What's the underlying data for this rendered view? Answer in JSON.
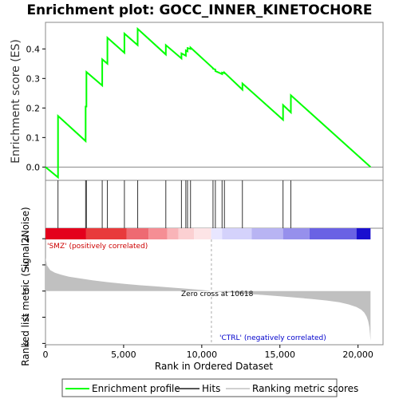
{
  "chart_data": {
    "type": "line",
    "title": "Enrichment plot: GOCC_INNER_KINETOCHORE",
    "es_panel": {
      "ylabel": "Enrichment score (ES)",
      "ylim": [
        -0.045,
        0.49
      ],
      "yticks": [
        0.0,
        0.1,
        0.2,
        0.3,
        0.4
      ],
      "ytick_labels": [
        "0.0",
        "0.1",
        "0.2",
        "0.3",
        "0.4"
      ],
      "series": [
        {
          "name": "Enrichment profile",
          "color": "#00ff00",
          "x": [
            0,
            800,
            800,
            2570,
            2570,
            2620,
            2620,
            3630,
            3630,
            3960,
            3960,
            5050,
            5050,
            5900,
            5900,
            7700,
            7700,
            8700,
            8700,
            8980,
            8980,
            9090,
            9090,
            9280,
            9280,
            10720,
            10720,
            10870,
            10870,
            11300,
            11300,
            11450,
            11450,
            12600,
            12600,
            15200,
            15200,
            15700,
            15700,
            20800
          ],
          "y": [
            0.0,
            -0.035,
            0.173,
            0.088,
            0.205,
            0.205,
            0.322,
            0.276,
            0.365,
            0.35,
            0.438,
            0.387,
            0.452,
            0.413,
            0.468,
            0.381,
            0.413,
            0.368,
            0.385,
            0.377,
            0.395,
            0.392,
            0.403,
            0.4,
            0.405,
            0.335,
            0.333,
            0.33,
            0.325,
            0.315,
            0.32,
            0.318,
            0.32,
            0.262,
            0.283,
            0.16,
            0.21,
            0.185,
            0.243,
            0.0
          ]
        }
      ]
    },
    "hits_panel": {
      "legend_label": "Hits",
      "hit_positions": [
        800,
        2570,
        2620,
        3630,
        3960,
        5050,
        5900,
        7700,
        8700,
        8980,
        9090,
        9280,
        10720,
        10870,
        11300,
        11450,
        12600,
        15200,
        15700
      ]
    },
    "heatmap_bar": {
      "colors": [
        "#e4001c",
        "#e83a3c",
        "#ee6a72",
        "#f58e94",
        "#f9b4b8",
        "#fbd0d2",
        "#fde4e6",
        "#e8e6ff",
        "#d4d2fb",
        "#b8b4f3",
        "#9690ec",
        "#6a62e4",
        "#1a0fcf"
      ],
      "breaks": [
        0,
        2600,
        5200,
        6600,
        7800,
        8500,
        9500,
        10600,
        11300,
        13200,
        15200,
        16900,
        19900,
        20800
      ]
    },
    "metric_panel": {
      "ylabel": "Ranked list metric (Signal2Noise)",
      "ylim": [
        -4.1,
        4.8
      ],
      "yticks": [
        -4,
        -2,
        0,
        2,
        4
      ],
      "ytick_labels": [
        "-4",
        "-2",
        "0",
        "2",
        "4"
      ],
      "legend_label": "Ranking metric scores",
      "fill_color": "#c0c0c0",
      "x": [
        0,
        100,
        300,
        600,
        1000,
        1500,
        2000,
        3000,
        4000,
        5000,
        6000,
        7000,
        8000,
        9000,
        10000,
        10618,
        11000,
        12000,
        13000,
        14000,
        15000,
        16000,
        17000,
        18000,
        18800,
        19400,
        19900,
        20200,
        20400,
        20550,
        20650,
        20720,
        20760,
        20800
      ],
      "y": [
        2.55,
        1.95,
        1.6,
        1.4,
        1.25,
        1.1,
        1.0,
        0.82,
        0.68,
        0.56,
        0.45,
        0.36,
        0.27,
        0.18,
        0.08,
        0.0,
        -0.04,
        -0.13,
        -0.22,
        -0.31,
        -0.4,
        -0.5,
        -0.6,
        -0.72,
        -0.86,
        -1.02,
        -1.22,
        -1.42,
        -1.65,
        -1.95,
        -2.3,
        -2.75,
        -3.25,
        -3.8
      ]
    },
    "xlabel": "Rank in Ordered Dataset",
    "xlim": [
      0,
      21600
    ],
    "xticks": [
      0,
      5000,
      10000,
      15000,
      20000
    ],
    "xtick_labels": [
      "0",
      "5,000",
      "10,000",
      "15,000",
      "20,000"
    ],
    "annotations": {
      "pos_label": "'SMZ' (positively correlated)",
      "neg_label": "'CTRL' (negatively correlated)",
      "zero_cross": "Zero cross at 10618",
      "zero_cross_rank": 10618,
      "pos_color": "#cc0000",
      "neg_color": "#0000cc"
    },
    "legend": [
      {
        "label": "Enrichment profile",
        "color": "#00ff00"
      },
      {
        "label": "Hits",
        "color": "#555555"
      },
      {
        "label": "Ranking metric scores",
        "color": "#d0d0d0"
      }
    ]
  }
}
